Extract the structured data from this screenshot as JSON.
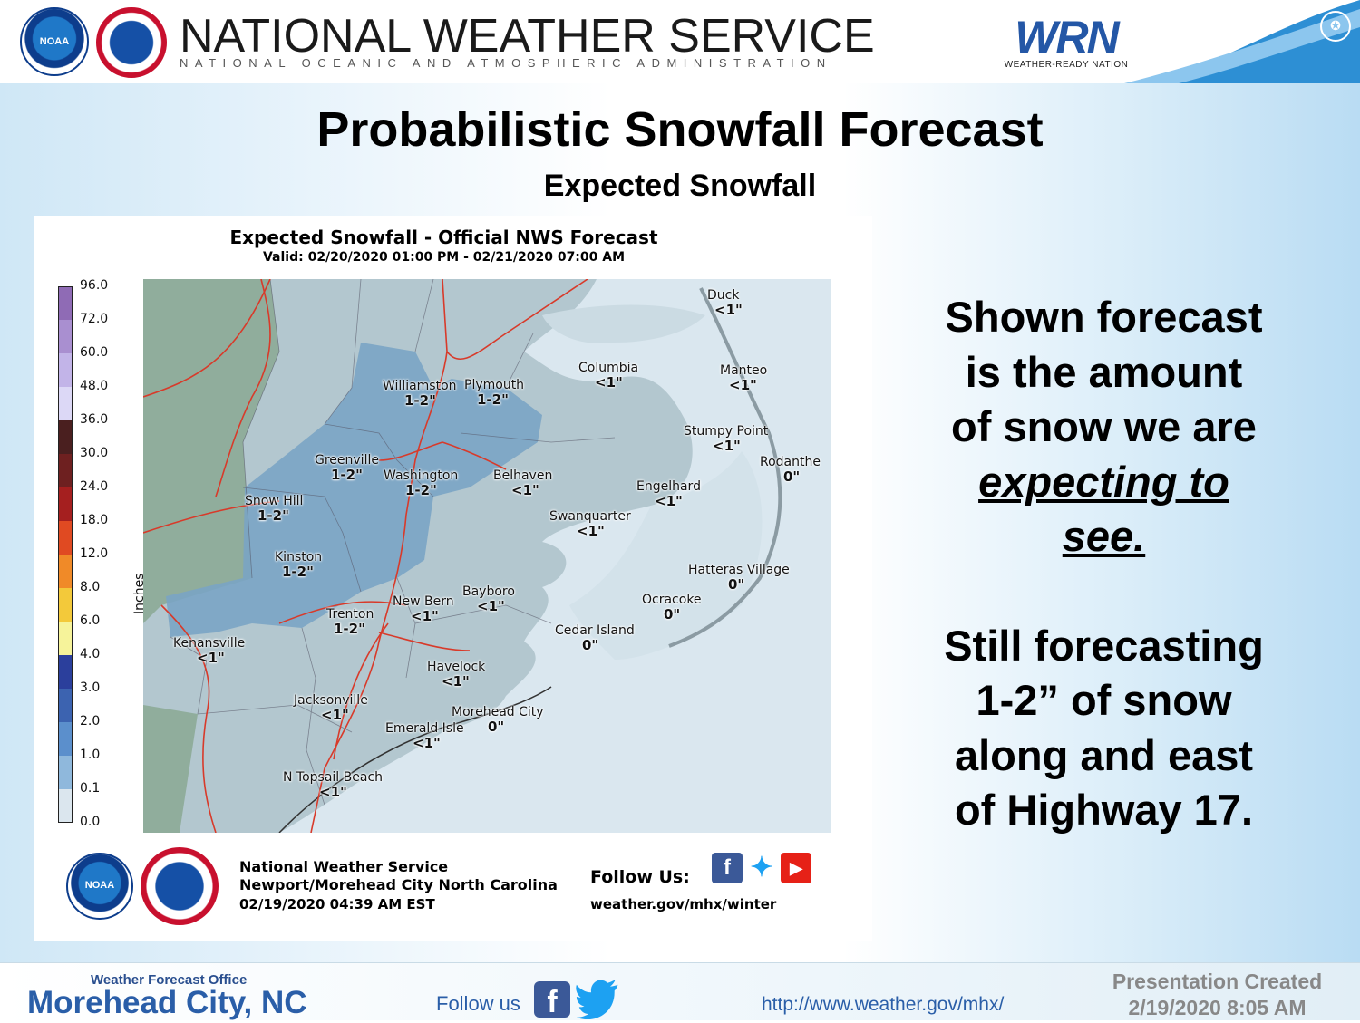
{
  "header": {
    "title": "NATIONAL WEATHER SERVICE",
    "subtitle": "NATIONAL OCEANIC AND ATMOSPHERIC ADMINISTRATION",
    "wrn_logo": "WRN",
    "wrn_tagline": "WEATHER-READY NATION",
    "noaa_logo_text": "NOAA"
  },
  "slide": {
    "title": "Probabilistic Snowfall Forecast",
    "subtitle": "Expected Snowfall"
  },
  "graphic": {
    "title": "Expected Snowfall - Official NWS Forecast",
    "valid": "Valid: 02/20/2020 01:00 PM - 02/21/2020 07:00 AM",
    "legend": {
      "unit": "Inches",
      "labels": [
        "96.0",
        "72.0",
        "60.0",
        "48.0",
        "36.0",
        "30.0",
        "24.0",
        "18.0",
        "12.0",
        "8.0",
        "6.0",
        "4.0",
        "3.0",
        "2.0",
        "1.0",
        "0.1",
        "0.0"
      ],
      "colors": [
        "#8f6bb5",
        "#a98fd0",
        "#c2b4e8",
        "#dcd8f6",
        "#4a1f1f",
        "#6e2020",
        "#a51f1f",
        "#e04a22",
        "#f08a28",
        "#f3c93a",
        "#f6f39a",
        "#2b3f9c",
        "#3c63b0",
        "#5b8fcc",
        "#8fb8dc",
        "#dbe6ee",
        "#f4f4f4"
      ]
    },
    "places": [
      {
        "name": "Duck",
        "amount": "<1\""
      },
      {
        "name": "Columbia",
        "amount": "<1\""
      },
      {
        "name": "Manteo",
        "amount": "<1\""
      },
      {
        "name": "Williamston",
        "amount": "1-2\""
      },
      {
        "name": "Plymouth",
        "amount": "1-2\""
      },
      {
        "name": "Stumpy Point",
        "amount": "<1\""
      },
      {
        "name": "Rodanthe",
        "amount": "0\""
      },
      {
        "name": "Greenville",
        "amount": "1-2\""
      },
      {
        "name": "Washington",
        "amount": "1-2\""
      },
      {
        "name": "Belhaven",
        "amount": "<1\""
      },
      {
        "name": "Engelhard",
        "amount": "<1\""
      },
      {
        "name": "Snow Hill",
        "amount": "1-2\""
      },
      {
        "name": "Swanquarter",
        "amount": "<1\""
      },
      {
        "name": "Kinston",
        "amount": "1-2\""
      },
      {
        "name": "Hatteras Village",
        "amount": "0\""
      },
      {
        "name": "Bayboro",
        "amount": "<1\""
      },
      {
        "name": "New Bern",
        "amount": "<1\""
      },
      {
        "name": "Ocracoke",
        "amount": "0\""
      },
      {
        "name": "Trenton",
        "amount": "1-2\""
      },
      {
        "name": "Cedar Island",
        "amount": "0\""
      },
      {
        "name": "Kenansville",
        "amount": "<1\""
      },
      {
        "name": "Havelock",
        "amount": "<1\""
      },
      {
        "name": "Jacksonville",
        "amount": "<1\""
      },
      {
        "name": "Morehead City",
        "amount": "0\""
      },
      {
        "name": "Emerald Isle",
        "amount": "<1\""
      },
      {
        "name": "N Topsail Beach",
        "amount": "<1\""
      }
    ],
    "footer": {
      "office": "National Weather Service",
      "location": "Newport/Morehead City North Carolina",
      "issued": "02/19/2020 04:39 AM EST",
      "follow": "Follow Us:",
      "url": "weather.gov/mhx/winter",
      "noaa_logo_text": "NOAA",
      "social_icons": [
        "facebook-icon",
        "twitter-icon",
        "youtube-icon"
      ]
    }
  },
  "side_text": {
    "para1_line1": "Shown forecast",
    "para1_line2": "is the amount",
    "para1_line3": "of snow we are",
    "para1_emph1": "expecting to",
    "para1_emph2": "see.",
    "para2_line1": "Still forecasting",
    "para2_line2": "1-2” of snow",
    "para2_line3": "along and east",
    "para2_line4": "of Highway 17."
  },
  "footer": {
    "wfo_label": "Weather Forecast Office",
    "wfo_name": "Morehead City, NC",
    "follow_us": "Follow us",
    "url": "http://www.weather.gov/mhx/",
    "presentation_created": "Presentation Created",
    "created_date": "2/19/2020 8:05 AM"
  }
}
